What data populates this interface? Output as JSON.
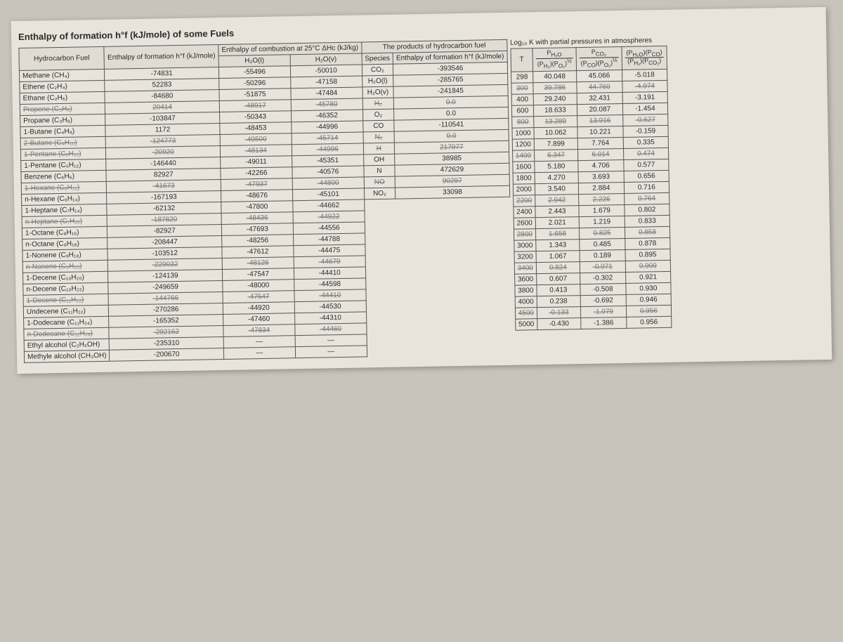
{
  "title": "Enthalpy of formation h°f (kJ/mole) of some Fuels",
  "leftTable": {
    "headers": {
      "fuel": "Hydrocarbon Fuel",
      "hf": "Enthalpy of formation h°f (kJ/mole)",
      "combust": "Enthalpy of combustion at 25°C ΔHc (kJ/kg)",
      "sub1": "H₂O(l)",
      "sub2": "H₂O(v)",
      "prod": "The products of hydrocarbon fuel",
      "species": "Species",
      "hf2": "Enthalpy of formation h°f (kJ/mole)"
    },
    "rows": [
      {
        "name": "Methane (CH₄)",
        "hf": "-74831",
        "c1": "-55496",
        "c2": "-50010",
        "sp": "CO₂",
        "shf": "-393546"
      },
      {
        "name": "Ethene (C₂H₄)",
        "hf": "52283",
        "c1": "-50296",
        "c2": "-47158",
        "sp": "H₂O(l)",
        "shf": "-285765"
      },
      {
        "name": "Ethane (C₂H₆)",
        "hf": "-84680",
        "c1": "-51875",
        "c2": "-47484",
        "sp": "H₂O(v)",
        "shf": "-241845"
      },
      {
        "name": "Propene (C₃H₆)",
        "hf": "20414",
        "c1": "-48917",
        "c2": "-45780",
        "sp": "H₂",
        "shf": "0.0",
        "struck": true
      },
      {
        "name": "Propane (C₃H₈)",
        "hf": "-103847",
        "c1": "-50343",
        "c2": "-46352",
        "sp": "O₂",
        "shf": "0.0"
      },
      {
        "name": "1-Butane (C₄H₈)",
        "hf": "1172",
        "c1": "-48453",
        "c2": "-44996",
        "sp": "CO",
        "shf": "-110541"
      },
      {
        "name": "2-Butane (C₄H₁₀)",
        "hf": "-124773",
        "c1": "-49500",
        "c2": "-45714",
        "sp": "N₂",
        "shf": "0.0",
        "struck": true
      },
      {
        "name": "1-Pentane (C₅H₁₀)",
        "hf": "-20920",
        "c1": "-48134",
        "c2": "-44996",
        "sp": "H",
        "shf": "217977",
        "struck": true
      },
      {
        "name": "1-Pentane (C₅H₁₂)",
        "hf": "-146440",
        "c1": "-49011",
        "c2": "-45351",
        "sp": "OH",
        "shf": "38985"
      },
      {
        "name": "Benzene (C₆H₆)",
        "hf": "82927",
        "c1": "-42266",
        "c2": "-40576",
        "sp": "N",
        "shf": "472629"
      },
      {
        "name": "1-Hexane (C₆H₁₂)",
        "hf": "-41673",
        "c1": "-47937",
        "c2": "-44800",
        "sp": "NO",
        "shf": "90297",
        "struck": true
      },
      {
        "name": "n-Hexane (C₆H₁₄)",
        "hf": "-167193",
        "c1": "-48676",
        "c2": "-45101",
        "sp": "NO₂",
        "shf": "33098"
      },
      {
        "name": "1-Heptane (C₇H₁₄)",
        "hf": "-62132",
        "c1": "-47800",
        "c2": "-44662"
      },
      {
        "name": "n-Heptane (C₇H₁₆)",
        "hf": "-187820",
        "c1": "-48436",
        "c2": "-44922",
        "struck": true
      },
      {
        "name": "1-Octane (C₈H₁₆)",
        "hf": "-82927",
        "c1": "-47693",
        "c2": "-44556"
      },
      {
        "name": "n-Octane (C₈H₁₈)",
        "hf": "-208447",
        "c1": "-48256",
        "c2": "-44788"
      },
      {
        "name": "1-Nonene (C₉H₁₈)",
        "hf": "-103512",
        "c1": "-47612",
        "c2": "-44475"
      },
      {
        "name": "n-Nonene (C₉H₂₀)",
        "hf": "-229032",
        "c1": "-48126",
        "c2": "-44679",
        "struck": true
      },
      {
        "name": "1-Decene (C₁₀H₂₀)",
        "hf": "-124139",
        "c1": "-47547",
        "c2": "-44410"
      },
      {
        "name": "n-Decene (C₁₀H₂₂)",
        "hf": "-249659",
        "c1": "-48000",
        "c2": "-44598"
      },
      {
        "name": "1-Decene (C₁₁H₂₂)",
        "hf": "-144766",
        "c1": "-47547",
        "c2": "-44410",
        "struck": true
      },
      {
        "name": "Undecene (C₁₁H₂₂)",
        "hf": "-270286",
        "c1": "-44920",
        "c2": "-44530"
      },
      {
        "name": "1-Dodecane (C₁₁H₂₄)",
        "hf": "-165352",
        "c1": "-47460",
        "c2": "-44310"
      },
      {
        "name": "n-Dodecane (C₁₂H₂₆)",
        "hf": "-292162",
        "c1": "-47834",
        "c2": "-44460",
        "struck": true
      },
      {
        "name": "Ethyl alcohol (C₂H₅OH)",
        "hf": "-235310",
        "c1": "—",
        "c2": "—"
      },
      {
        "name": "Methyle alcohol (CH₃OH)",
        "hf": "-200670",
        "c1": "—",
        "c2": "—"
      }
    ]
  },
  "rightTable": {
    "caption": "Log₁₀ K with partial pressures in atmospheres",
    "headers": {
      "T": "T",
      "c1top": "P_{H₂O}",
      "c1bot": "(P_{H₂})(P_{O₂})^{½}",
      "c2top": "P_{CO₂}",
      "c2bot": "(P_{CO})(P_{O₂})^{½}",
      "c3top": "(P_{H₂O})(P_{CO})",
      "c3bot": "(P_{H₂})(P_{CO₂})"
    },
    "rows": [
      {
        "t": "298",
        "a": "40.048",
        "b": "45.066",
        "c": "-5.018"
      },
      {
        "t": "300",
        "a": "39.786",
        "b": "44.760",
        "c": "-4.974",
        "struck": true
      },
      {
        "t": "400",
        "a": "29.240",
        "b": "32.431",
        "c": "-3.191"
      },
      {
        "t": "600",
        "a": "18.633",
        "b": "20.087",
        "c": "-1.454"
      },
      {
        "t": "800",
        "a": "13.289",
        "b": "13.916",
        "c": "-0.627",
        "struck": true
      },
      {
        "t": "1000",
        "a": "10.062",
        "b": "10.221",
        "c": "-0.159"
      },
      {
        "t": "1200",
        "a": "7.899",
        "b": "7.764",
        "c": "0.335"
      },
      {
        "t": "1400",
        "a": "6.347",
        "b": "6.014",
        "c": "0.474",
        "struck": true
      },
      {
        "t": "1600",
        "a": "5.180",
        "b": "4.706",
        "c": "0.577"
      },
      {
        "t": "1800",
        "a": "4.270",
        "b": "3.693",
        "c": "0.656"
      },
      {
        "t": "2000",
        "a": "3.540",
        "b": "2.884",
        "c": "0.716"
      },
      {
        "t": "2200",
        "a": "2.942",
        "b": "2.226",
        "c": "0.764",
        "struck": true
      },
      {
        "t": "2400",
        "a": "2.443",
        "b": "1.679",
        "c": "0.802"
      },
      {
        "t": "2600",
        "a": "2.021",
        "b": "1.219",
        "c": "0.833"
      },
      {
        "t": "2800",
        "a": "1.658",
        "b": "0.825",
        "c": "0.858",
        "struck": true
      },
      {
        "t": "3000",
        "a": "1.343",
        "b": "0.485",
        "c": "0.878"
      },
      {
        "t": "3200",
        "a": "1.067",
        "b": "0.189",
        "c": "0.895"
      },
      {
        "t": "3400",
        "a": "0.824",
        "b": "-0.071",
        "c": "0.909",
        "struck": true
      },
      {
        "t": "3600",
        "a": "0.607",
        "b": "-0.302",
        "c": "0.921"
      },
      {
        "t": "3800",
        "a": "0.413",
        "b": "-0.508",
        "c": "0.930"
      },
      {
        "t": "4000",
        "a": "0.238",
        "b": "-0.692",
        "c": "0.946"
      },
      {
        "t": "4500",
        "a": "-0.133",
        "b": "-1.079",
        "c": "0.956",
        "struck": true
      },
      {
        "t": "5000",
        "a": "-0.430",
        "b": "-1.386",
        "c": "0.956"
      }
    ]
  }
}
